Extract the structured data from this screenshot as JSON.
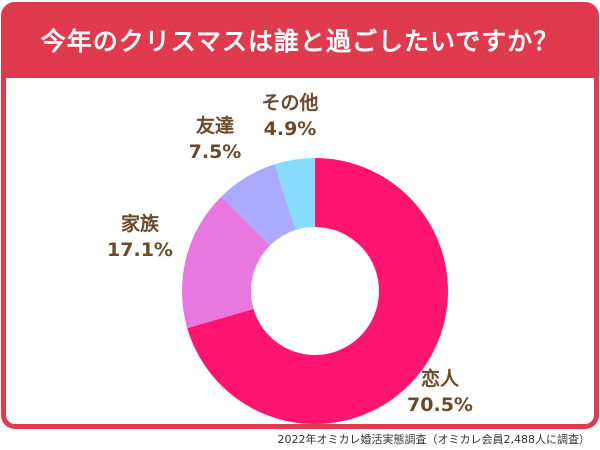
{
  "title": "今年のクリスマスは誰と過ごしたいですか？",
  "source": "2022年オミカレ婚活実態調査（オミカレ会員2,488人に調査）",
  "chart_data": {
    "type": "pie",
    "variant": "donut",
    "title": "今年のクリスマスは誰と過ごしたいですか？",
    "start": "top",
    "direction": "clockwise",
    "categories": [
      "恋人",
      "家族",
      "友達",
      "その他"
    ],
    "values": [
      70.5,
      17.1,
      7.5,
      4.9
    ],
    "labels": [
      "70.5%",
      "17.1%",
      "7.5%",
      "4.9%"
    ],
    "colors": [
      "#FF1470",
      "#E878E0",
      "#AAAAFF",
      "#88DDFF"
    ],
    "legend": "none"
  }
}
